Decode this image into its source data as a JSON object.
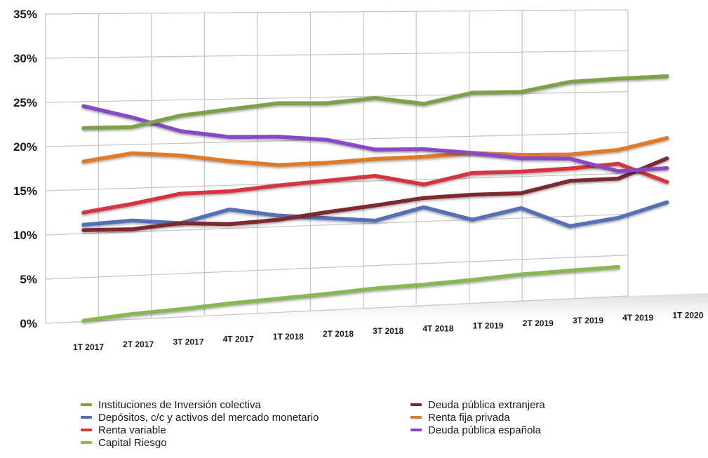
{
  "chart_data": {
    "type": "line",
    "title": "",
    "xlabel": "",
    "ylabel": "",
    "ylim": [
      0,
      35
    ],
    "yticks": [
      "0%",
      "5%",
      "10%",
      "15%",
      "20%",
      "25%",
      "30%",
      "35%"
    ],
    "categories": [
      "1T 2017",
      "2T 2017",
      "3T 2017",
      "4T 2017",
      "1T 2018",
      "2T 2018",
      "3T 2018",
      "4T 2018",
      "1T 2019",
      "2T 2019",
      "3T 2019",
      "4T 2019",
      "1T 2020"
    ],
    "grid": true,
    "legend_position": "bottom",
    "series": [
      {
        "name": "Instituciones de Inversión colectiva",
        "color": "#7ea04a",
        "values": [
          22.0,
          22.0,
          23.2,
          23.8,
          24.4,
          24.3,
          24.8,
          24.0,
          25.2,
          25.2,
          26.3,
          26.6,
          26.8
        ]
      },
      {
        "name": "Depósitos, c/c y activos del mercado monetario",
        "color": "#5670b8",
        "values": [
          11.0,
          11.3,
          10.8,
          12.2,
          11.3,
          10.8,
          10.3,
          11.7,
          10.0,
          11.2,
          8.8,
          9.6,
          11.3
        ]
      },
      {
        "name": "Renta variable",
        "color": "#d6363f",
        "values": [
          12.4,
          13.2,
          14.2,
          14.3,
          14.8,
          15.2,
          15.6,
          14.4,
          15.6,
          15.6,
          15.8,
          16.2,
          13.8
        ]
      },
      {
        "name": "Capital Riesgo",
        "color": "#8ab756",
        "values": [
          0.1,
          0.6,
          0.9,
          1.3,
          1.6,
          1.9,
          2.3,
          2.5,
          2.8,
          3.2,
          3.4,
          3.6,
          null
        ]
      },
      {
        "name": "Deuda pública extranjera",
        "color": "#7d2a2e",
        "values": [
          10.4,
          10.3,
          10.8,
          10.5,
          10.8,
          11.5,
          12.1,
          12.8,
          13.0,
          13.0,
          14.3,
          14.4,
          16.7
        ]
      },
      {
        "name": "Renta fija privada",
        "color": "#e07a28",
        "values": [
          18.2,
          19.0,
          18.6,
          17.8,
          17.2,
          17.3,
          17.6,
          17.7,
          18.0,
          17.6,
          17.5,
          17.9,
          19.2
        ]
      },
      {
        "name": "Deuda pública española",
        "color": "#8748c4",
        "values": [
          24.5,
          23.1,
          21.4,
          20.6,
          20.5,
          20.0,
          18.7,
          18.6,
          18.0,
          17.2,
          17.0,
          15.3,
          15.5
        ]
      }
    ]
  },
  "legend_order": [
    0,
    4,
    1,
    5,
    2,
    6,
    3
  ]
}
